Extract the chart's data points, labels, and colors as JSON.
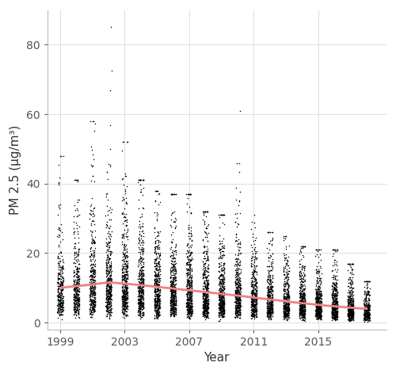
{
  "title": "",
  "xlabel": "Year",
  "ylabel": "PM 2.5 (μg/m³)",
  "xlim": [
    1998.2,
    2019.2
  ],
  "ylim": [
    -2,
    90
  ],
  "yticks": [
    0,
    20,
    40,
    60,
    80
  ],
  "xticks": [
    1999,
    2003,
    2007,
    2011,
    2015
  ],
  "background_color": "#ffffff",
  "grid_color": "#dddddd",
  "dot_color": "#000000",
  "dot_size": 1.2,
  "dot_alpha": 1.0,
  "smooth_color": "#f08080",
  "smooth_lw": 2.0,
  "years_start": 1999,
  "years_end": 2018,
  "seed": 42,
  "smooth_y": [
    10.0,
    10.5,
    11.0,
    11.5,
    11.2,
    10.8,
    10.3,
    9.8,
    9.3,
    8.8,
    8.3,
    7.8,
    7.2,
    6.7,
    6.1,
    5.6,
    5.1,
    4.7,
    4.3,
    4.0
  ],
  "year_params": {
    "1999": [
      9.0,
      6.0,
      300,
      48
    ],
    "2000": [
      9.5,
      6.5,
      340,
      41
    ],
    "2001": [
      10.0,
      7.0,
      380,
      58
    ],
    "2002": [
      10.5,
      7.5,
      420,
      85
    ],
    "2003": [
      10.5,
      7.5,
      450,
      52
    ],
    "2004": [
      10.0,
      7.0,
      450,
      41
    ],
    "2005": [
      9.5,
      7.0,
      460,
      38
    ],
    "2006": [
      9.0,
      6.5,
      460,
      37
    ],
    "2007": [
      8.5,
      6.5,
      470,
      37
    ],
    "2008": [
      8.0,
      6.0,
      470,
      32
    ],
    "2009": [
      7.5,
      5.5,
      450,
      31
    ],
    "2010": [
      7.5,
      5.5,
      420,
      61
    ],
    "2011": [
      7.0,
      5.0,
      400,
      31
    ],
    "2012": [
      6.5,
      4.5,
      400,
      26
    ],
    "2013": [
      6.0,
      4.5,
      420,
      25
    ],
    "2014": [
      5.5,
      4.0,
      440,
      22
    ],
    "2015": [
      5.0,
      4.0,
      460,
      21
    ],
    "2016": [
      4.5,
      3.5,
      460,
      21
    ],
    "2017": [
      4.0,
      3.5,
      450,
      17
    ],
    "2018": [
      3.5,
      3.0,
      300,
      12
    ]
  }
}
